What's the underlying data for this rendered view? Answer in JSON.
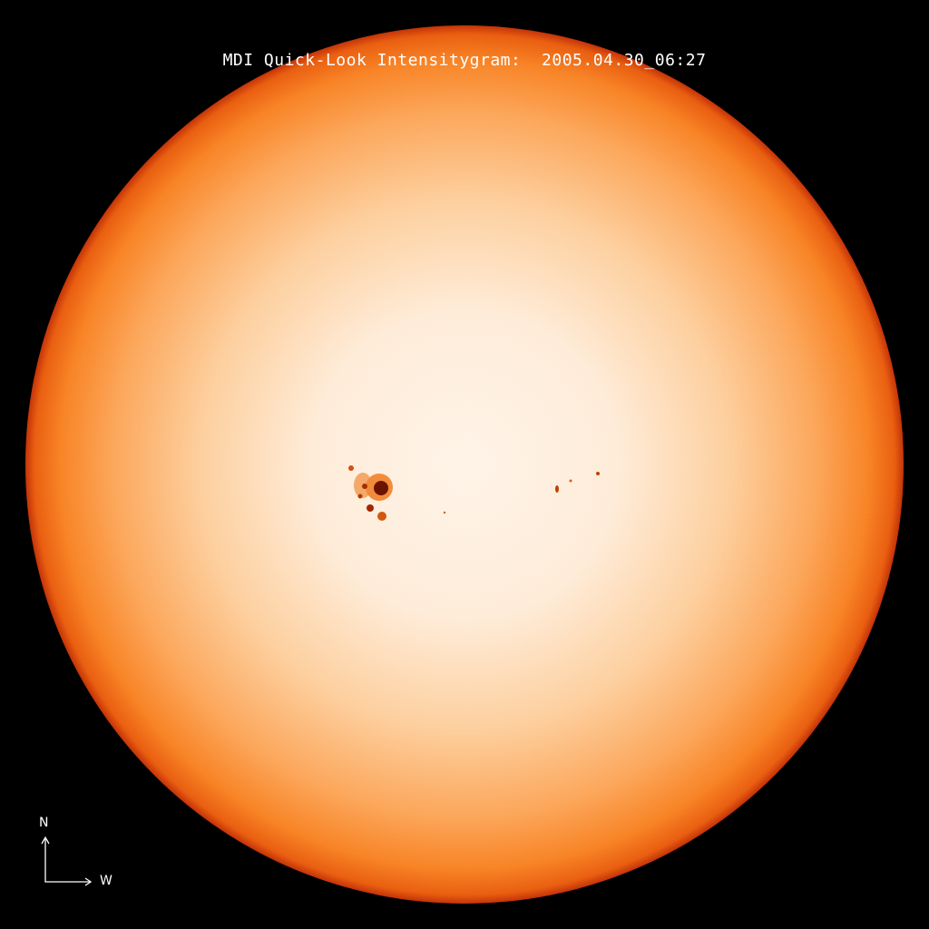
{
  "title": "MDI Quick-Look Intensitygram:  2005.04.30_06:27",
  "compass": {
    "north": "N",
    "west": "W"
  },
  "colors": {
    "background": "#000000",
    "disk_center": "#fff6ec",
    "disk_mid": "#fca055",
    "limb": "#e04a00",
    "edge": "#b02000",
    "sunspot": "#7a1a00"
  }
}
